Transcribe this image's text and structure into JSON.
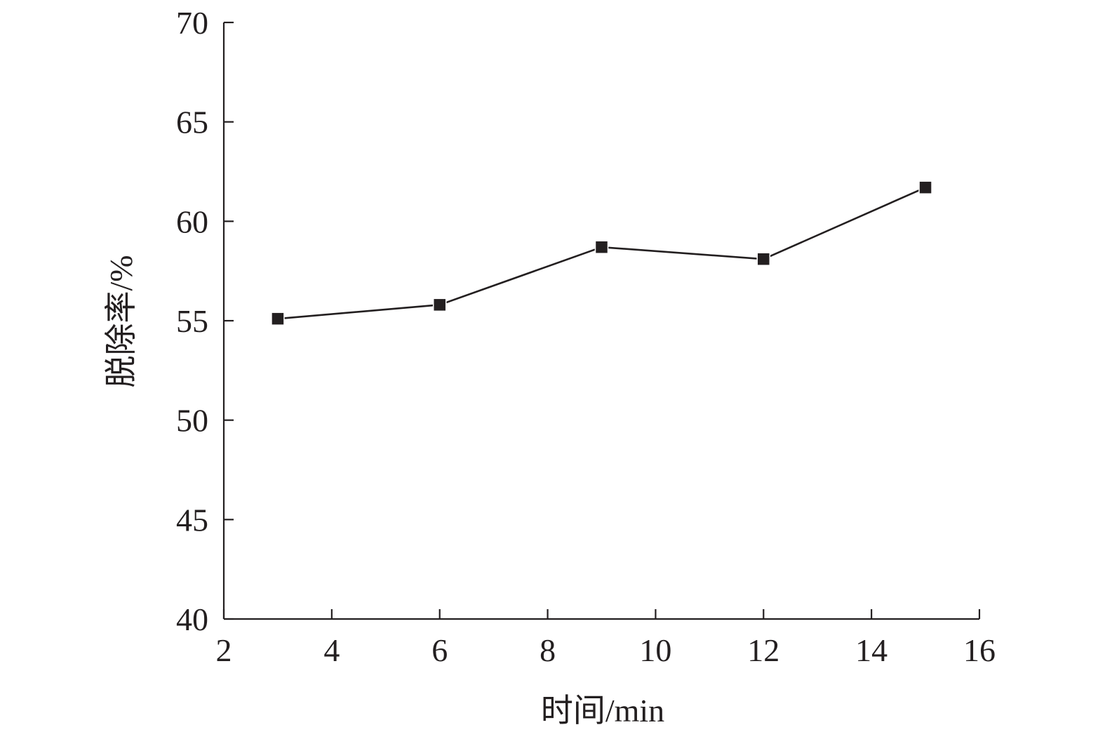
{
  "chart_data": {
    "type": "line",
    "title": "",
    "xlabel": "时间/min",
    "ylabel": "脱除率/%",
    "xlim": [
      2,
      16
    ],
    "ylim": [
      40,
      70
    ],
    "xticks": [
      2,
      4,
      6,
      8,
      10,
      12,
      14,
      16
    ],
    "yticks": [
      40,
      45,
      50,
      55,
      60,
      65,
      70
    ],
    "grid": false,
    "legend": "none",
    "series": [
      {
        "marker": "square",
        "color": "#231f20",
        "x": [
          3,
          6,
          9,
          12,
          15
        ],
        "y": [
          55.1,
          55.8,
          58.7,
          58.1,
          61.7
        ]
      }
    ]
  }
}
